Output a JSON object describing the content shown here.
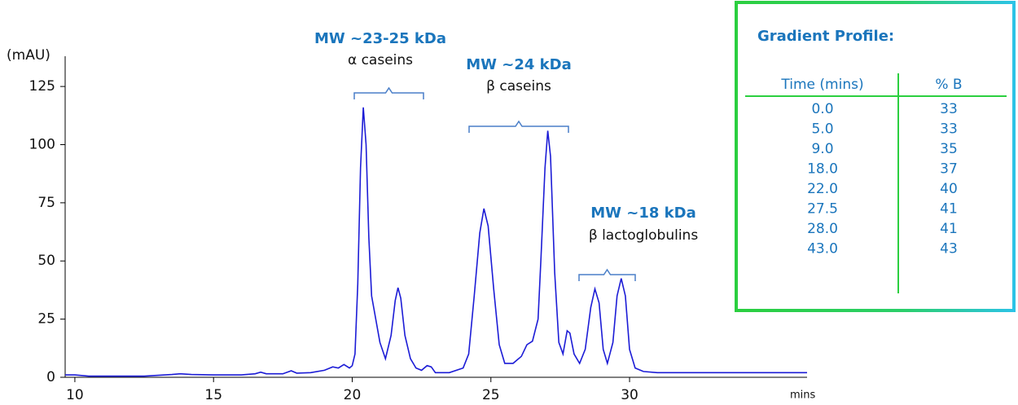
{
  "chart_data": {
    "type": "line",
    "y_label": "(mAU)",
    "x_label": "mins",
    "color": "#1c1cd6",
    "xlim": [
      9.65,
      36.4
    ],
    "ylim": [
      0,
      138
    ],
    "xticks": [
      10,
      15,
      20,
      25,
      30
    ],
    "yticks": [
      0,
      25,
      50,
      75,
      100,
      125
    ],
    "x": [
      9.65,
      10.0,
      10.5,
      11.5,
      12.5,
      13.5,
      13.8,
      14.2,
      15,
      16,
      16.5,
      16.7,
      16.9,
      17.5,
      17.8,
      18.0,
      18.5,
      19.0,
      19.3,
      19.5,
      19.7,
      19.9,
      20.0,
      20.1,
      20.2,
      20.3,
      20.4,
      20.5,
      20.6,
      20.7,
      20.85,
      21.0,
      21.2,
      21.4,
      21.55,
      21.65,
      21.75,
      21.9,
      22.1,
      22.3,
      22.5,
      22.7,
      22.85,
      23.0,
      23.5,
      24.0,
      24.2,
      24.4,
      24.6,
      24.75,
      24.9,
      25.1,
      25.3,
      25.5,
      25.8,
      26.1,
      26.3,
      26.5,
      26.7,
      26.8,
      26.95,
      27.05,
      27.15,
      27.3,
      27.45,
      27.6,
      27.75,
      27.85,
      28.0,
      28.2,
      28.4,
      28.6,
      28.75,
      28.9,
      29.05,
      29.2,
      29.4,
      29.55,
      29.7,
      29.85,
      30.0,
      30.2,
      30.5,
      31,
      33,
      36.4
    ],
    "values": [
      1,
      1,
      0.5,
      0.5,
      0.5,
      1.2,
      1.5,
      1.2,
      1,
      1,
      1.5,
      2.2,
      1.5,
      1.5,
      2.8,
      1.8,
      2,
      3,
      4.5,
      4,
      5.5,
      4,
      5,
      10,
      40,
      90,
      116,
      100,
      60,
      35,
      25,
      15,
      8,
      18,
      33,
      38.5,
      34,
      18,
      8,
      4,
      3,
      5,
      4.5,
      2,
      2,
      4,
      10,
      35,
      62,
      72.5,
      65,
      38,
      14,
      6,
      6,
      9,
      14,
      15.5,
      25,
      50,
      90,
      106,
      95,
      45,
      15,
      10,
      20,
      19,
      10,
      6,
      12,
      30,
      38,
      32,
      12,
      6,
      15,
      35,
      42.5,
      35,
      12,
      4,
      2.5,
      2,
      2,
      2
    ],
    "annotations": [
      {
        "title": "MW ~23-25 kDa",
        "label": "α caseins"
      },
      {
        "title": "MW ~24 kDa",
        "label": "β caseins"
      },
      {
        "title": "MW ~18 kDa",
        "label": "β lactoglobulins"
      }
    ]
  },
  "table": {
    "title": "Gradient Profile:",
    "columns": [
      "Time (mins)",
      "% B"
    ],
    "rows": [
      [
        "0.0",
        "33"
      ],
      [
        "5.0",
        "33"
      ],
      [
        "9.0",
        "35"
      ],
      [
        "18.0",
        "37"
      ],
      [
        "22.0",
        "40"
      ],
      [
        "27.5",
        "41"
      ],
      [
        "28.0",
        "41"
      ],
      [
        "43.0",
        "43"
      ]
    ]
  }
}
